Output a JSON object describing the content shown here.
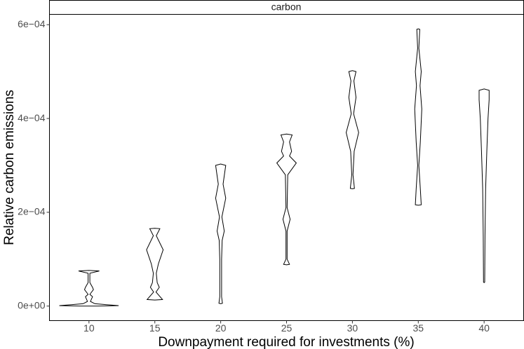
{
  "chart_data": {
    "type": "violin",
    "panel": "carbon",
    "x_label": "Downpayment required for investments (%)",
    "y_label": "Relative carbon emissions",
    "x": [
      10,
      15,
      20,
      25,
      30,
      35,
      40
    ],
    "violins": [
      {
        "y": [
          0,
          1e-06,
          5e-06,
          1e-05,
          2e-05,
          2.5e-05,
          3.5e-05,
          4e-05,
          5e-05,
          7e-05,
          7.5e-05,
          7.6e-05
        ],
        "density": [
          0.3,
          1.0,
          0.2,
          0.05,
          0.12,
          0.03,
          0.15,
          0.12,
          0.03,
          0.03,
          0.35,
          0
        ]
      },
      {
        "y": [
          1.3e-05,
          1.4e-05,
          3e-05,
          4e-05,
          5e-05,
          7e-05,
          9e-05,
          0.00012,
          0.00015,
          0.000165,
          0.000166
        ],
        "density": [
          0,
          0.26,
          0.04,
          0.15,
          0.08,
          0.05,
          0.12,
          0.28,
          0.05,
          0.17,
          0
        ]
      },
      {
        "y": [
          5e-06,
          6e-06,
          2e-05,
          0.0001,
          0.00014,
          0.00016,
          0.00019,
          0.00023,
          0.00026,
          0.0003,
          0.000303
        ],
        "density": [
          0,
          0.06,
          0.03,
          0.03,
          0.05,
          0.12,
          0.04,
          0.17,
          0.08,
          0.17,
          0
        ]
      },
      {
        "y": [
          8.8e-05,
          8.9e-05,
          0.0001,
          0.00016,
          0.000185,
          0.00021,
          0.00028,
          0.000305,
          0.00032,
          0.00033,
          0.00035,
          0.000365,
          0.000367
        ],
        "density": [
          0,
          0.1,
          0.02,
          0.02,
          0.12,
          0.02,
          0.04,
          0.33,
          0.1,
          0.17,
          0.1,
          0.19,
          0
        ]
      },
      {
        "y": [
          0.00025,
          0.000251,
          0.00028,
          0.00033,
          0.00037,
          0.00041,
          0.000445,
          0.00048,
          0.0005,
          0.000502
        ],
        "density": [
          0,
          0.07,
          0.02,
          0.06,
          0.21,
          0.04,
          0.12,
          0.05,
          0.12,
          0
        ]
      },
      {
        "y": [
          0.000215,
          0.000216,
          0.00025,
          0.0003,
          0.00035,
          0.00042,
          0.00047,
          0.0005,
          0.00055,
          0.00059,
          0.000591
        ],
        "density": [
          0,
          0.1,
          0.07,
          0.02,
          0.07,
          0.12,
          0.06,
          0.1,
          0.02,
          0.05,
          0
        ]
      },
      {
        "y": [
          5e-05,
          5.1e-05,
          0.00015,
          0.00025,
          0.00033,
          0.0004,
          0.00044,
          0.00046,
          0.000463
        ],
        "density": [
          0,
          0.02,
          0.03,
          0.05,
          0.09,
          0.13,
          0.17,
          0.17,
          0
        ]
      }
    ],
    "color": "#000000",
    "fill": "#ffffff",
    "xlim": [
      7,
      43
    ],
    "xticks": [
      10,
      15,
      20,
      25,
      30,
      35,
      40
    ],
    "ylim": [
      -3.1e-05,
      0.000622
    ],
    "yticks": [
      {
        "value": 0,
        "label": "0e+00"
      },
      {
        "value": 0.0002,
        "label": "2e−04"
      },
      {
        "value": 0.0004,
        "label": "4e−04"
      },
      {
        "value": 0.0006,
        "label": "6e−04"
      }
    ],
    "grid": false
  }
}
